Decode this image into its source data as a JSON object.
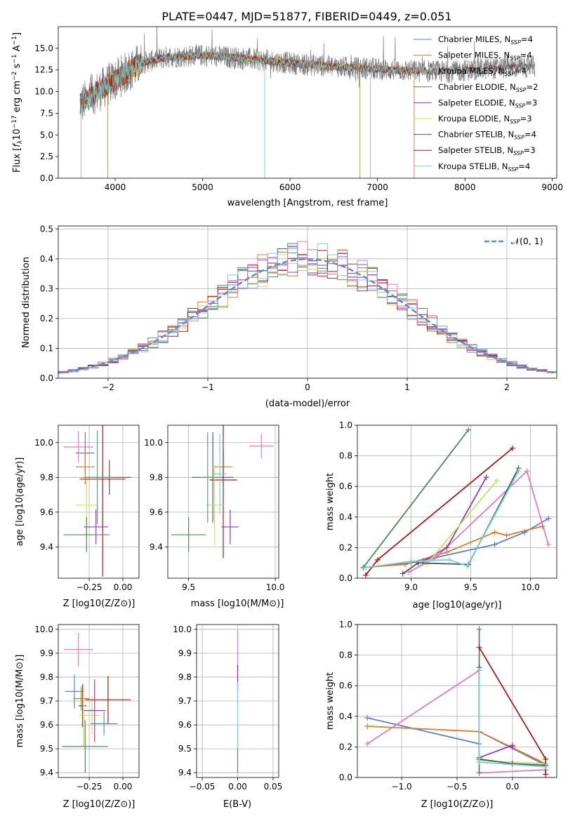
{
  "title": "PLATE=0447, MJD=51877, FIBERID=0449, z=0.051",
  "colors": {
    "Chabrier MILES": "#5b7fd6",
    "Salpeter MILES": "#e07a20",
    "Kroupa MILES": "#c28a1f",
    "Chabrier ELODIE": "#4f8a58",
    "Salpeter ELODIE": "#9a38b8",
    "Kroupa ELODIE": "#e2d43a",
    "Chabrier STELIB": "#555555",
    "Salpeter STELIB": "#b01818",
    "Kroupa STELIB": "#6fd3d8",
    "pink": "#e47ab8",
    "teal": "#5a9e8a",
    "lime": "#c5e65a",
    "normal": "#5b8bd6"
  },
  "chart_data": [
    {
      "id": "spectrum",
      "type": "line",
      "title": "PLATE=0447, MJD=51877, FIBERID=0449, z=0.051",
      "xlabel": "wavelength [Angstrom, rest frame]",
      "ylabel": "Flux [f_λ 10^-17 erg cm^-2 s^-1 A^-1]",
      "xlim": [
        3350,
        9050
      ],
      "ylim": [
        0,
        17.5
      ],
      "xticks": [
        4000,
        5000,
        6000,
        7000,
        8000,
        9000
      ],
      "yticks": [
        0.0,
        2.5,
        5.0,
        7.5,
        10.0,
        12.5,
        15.0
      ],
      "legend_position": "upper right",
      "spectrum_range": [
        3600,
        8800
      ],
      "continuum_points": [
        [
          3600,
          8.5
        ],
        [
          3800,
          10.0
        ],
        [
          3950,
          11.0
        ],
        [
          4100,
          12.0
        ],
        [
          4300,
          13.3
        ],
        [
          4600,
          14.0
        ],
        [
          5000,
          14.2
        ],
        [
          5500,
          13.8
        ],
        [
          6000,
          13.3
        ],
        [
          6500,
          12.9
        ],
        [
          7000,
          12.6
        ],
        [
          7400,
          12.4
        ],
        [
          7800,
          12.3
        ],
        [
          8200,
          12.6
        ],
        [
          8500,
          12.8
        ],
        [
          8800,
          12.9
        ]
      ],
      "series": [
        {
          "name": "Chabrier MILES, N_SSP=4",
          "label_main": "Chabrier MILES, N",
          "label_sub": "SSP",
          "label_tail": "=4",
          "end": 7420
        },
        {
          "name": "Salpeter MILES, N_SSP=4",
          "label_main": "Salpeter MILES, N",
          "label_sub": "SSP",
          "label_tail": "=4",
          "end": 7420
        },
        {
          "name": "Kroupa MILES, N_SSP=4",
          "label_main": "Kroupa MILES, N",
          "label_sub": "SSP",
          "label_tail": "=4",
          "end": 7420
        },
        {
          "name": "Chabrier ELODIE, N_SSP=2",
          "label_main": "Chabrier ELODIE, N",
          "label_sub": "SSP",
          "label_tail": "=2",
          "end": 6800
        },
        {
          "name": "Salpeter ELODIE, N_SSP=3",
          "label_main": "Salpeter ELODIE, N",
          "label_sub": "SSP",
          "label_tail": "=3",
          "end": 6800
        },
        {
          "name": "Kroupa ELODIE, N_SSP=3",
          "label_main": "Kroupa ELODIE, N",
          "label_sub": "SSP",
          "label_tail": "=3",
          "end": 6800
        },
        {
          "name": "Chabrier STELIB, N_SSP=4",
          "label_main": "Chabrier STELIB, N",
          "label_sub": "SSP",
          "label_tail": "=4",
          "end": 8800
        },
        {
          "name": "Salpeter STELIB, N_SSP=3",
          "label_main": "Salpeter STELIB, N",
          "label_sub": "SSP",
          "label_tail": "=3",
          "end": 8800
        },
        {
          "name": "Kroupa STELIB, N_SSP=4",
          "label_main": "Kroupa STELIB, N",
          "label_sub": "SSP",
          "label_tail": "=4",
          "end": 8800
        }
      ]
    },
    {
      "id": "residuals",
      "type": "line",
      "xlabel": "(data-model)/error",
      "ylabel": "Normed distribution",
      "xlim": [
        -2.5,
        2.5
      ],
      "ylim": [
        0,
        0.51
      ],
      "xticks": [
        -2,
        -1,
        0,
        1,
        2
      ],
      "yticks": [
        0.0,
        0.1,
        0.2,
        0.3,
        0.4,
        0.5
      ],
      "grid": true,
      "legend": "𝒩(0, 1)",
      "legend_position": "upper right",
      "bin_width": 0.1,
      "bin_start": -2.5
    },
    {
      "id": "age_vs_Z",
      "type": "scatter",
      "xlabel": "Z [log10(Z/Z⊙)]",
      "ylabel": "age [log10(age/yr)]",
      "xlim": [
        -0.48,
        0.12
      ],
      "ylim": [
        9.22,
        10.1
      ],
      "xticks": [
        -0.25,
        0.0
      ],
      "yticks": [
        9.4,
        9.6,
        9.8,
        10.0
      ],
      "grid": true,
      "points": [
        {
          "c": "pink",
          "x": -0.33,
          "y": 9.975,
          "xe": 0.11,
          "ye": 0.09
        },
        {
          "c": "Chabrier MILES",
          "x": -0.28,
          "y": 9.94,
          "xe": 0.07,
          "ye": 0.12
        },
        {
          "c": "Salpeter MILES",
          "x": -0.28,
          "y": 9.86,
          "xe": 0.07,
          "ye": 0.1
        },
        {
          "c": "lime",
          "x": -0.27,
          "y": 9.64,
          "xe": 0.08,
          "ye": 0.17
        },
        {
          "c": "Chabrier STELIB",
          "x": -0.1,
          "y": 9.8,
          "xe": 0.16,
          "ye": 0.1
        },
        {
          "c": "Salpeter STELIB",
          "x": -0.15,
          "y": 9.79,
          "xe": 0.17,
          "ye": 0.56
        },
        {
          "c": "Salpeter ELODIE",
          "x": -0.2,
          "y": 9.515,
          "xe": 0.09,
          "ye": 0.1
        },
        {
          "c": "teal",
          "x": -0.19,
          "y": 9.8,
          "xe": 0.11,
          "ye": 0.27
        },
        {
          "c": "Chabrier ELODIE",
          "x": -0.27,
          "y": 9.47,
          "xe": 0.17,
          "ye": 0.1
        }
      ]
    },
    {
      "id": "age_vs_mass",
      "type": "scatter",
      "xlabel": "mass [log10(M/M⊙)]",
      "ylabel": "",
      "xlim": [
        9.38,
        10.02
      ],
      "ylim": [
        9.22,
        10.1
      ],
      "xticks": [
        9.5,
        10.0
      ],
      "yticks": [
        9.4,
        9.6,
        9.8,
        10.0
      ],
      "grid": true,
      "points": [
        {
          "c": "pink",
          "x": 9.92,
          "y": 9.98,
          "xe": 0.07,
          "ye": 0.07
        },
        {
          "c": "Salpeter MILES",
          "x": 9.7,
          "y": 9.86,
          "xe": 0.05,
          "ye": 0.1
        },
        {
          "c": "Chabrier STELIB",
          "x": 9.64,
          "y": 9.8,
          "xe": 0.12,
          "ye": 0.26
        },
        {
          "c": "Salpeter STELIB",
          "x": 9.7,
          "y": 9.785,
          "xe": 0.08,
          "ye": 0.45
        },
        {
          "c": "lime",
          "x": 9.65,
          "y": 9.64,
          "xe": 0.05,
          "ye": 0.23
        },
        {
          "c": "Salpeter ELODIE",
          "x": 9.74,
          "y": 9.515,
          "xe": 0.05,
          "ye": 0.1
        },
        {
          "c": "Chabrier ELODIE",
          "x": 9.5,
          "y": 9.47,
          "xe": 0.1,
          "ye": 0.1
        },
        {
          "c": "teal",
          "x": 9.61,
          "y": 9.8,
          "xe": 0.04,
          "ye": 0.26
        },
        {
          "c": "Kroupa STELIB",
          "x": 9.68,
          "y": 9.82,
          "xe": 0.04,
          "ye": 0.23
        }
      ]
    },
    {
      "id": "weight_vs_age",
      "type": "line",
      "xlabel": "age [log10(age/yr)]",
      "ylabel": "mass weight",
      "xlim": [
        8.55,
        10.22
      ],
      "ylim": [
        0.0,
        1.0
      ],
      "xticks": [
        9.0,
        9.5,
        10.0
      ],
      "yticks": [
        0.0,
        0.2,
        0.4,
        0.6,
        0.8,
        1.0
      ],
      "grid": true,
      "series": [
        {
          "c": "Chabrier MILES",
          "pts": [
            [
              8.6,
              0.07
            ],
            [
              9.0,
              0.1
            ],
            [
              9.7,
              0.22
            ],
            [
              9.95,
              0.3
            ],
            [
              10.15,
              0.39
            ]
          ]
        },
        {
          "c": "Salpeter MILES",
          "pts": [
            [
              8.6,
              0.07
            ],
            [
              8.95,
              0.09
            ],
            [
              9.3,
              0.17
            ],
            [
              9.7,
              0.3
            ],
            [
              9.8,
              0.28
            ],
            [
              10.1,
              0.34
            ]
          ]
        },
        {
          "c": "pink",
          "pts": [
            [
              8.98,
              0.04
            ],
            [
              9.2,
              0.13
            ],
            [
              9.97,
              0.7
            ],
            [
              10.15,
              0.22
            ]
          ]
        },
        {
          "c": "Chabrier ELODIE",
          "pts": [
            [
              8.6,
              0.07
            ],
            [
              9.48,
              0.97
            ]
          ]
        },
        {
          "c": "Salpeter ELODIE",
          "pts": [
            [
              9.1,
              0.11
            ],
            [
              9.3,
              0.2
            ],
            [
              9.63,
              0.66
            ]
          ]
        },
        {
          "c": "lime",
          "pts": [
            [
              9.13,
              0.09
            ],
            [
              9.72,
              0.64
            ]
          ]
        },
        {
          "c": "Salpeter STELIB",
          "pts": [
            [
              8.62,
              0.02
            ],
            [
              8.72,
              0.12
            ],
            [
              9.85,
              0.85
            ]
          ]
        },
        {
          "c": "Chabrier STELIB",
          "pts": [
            [
              8.93,
              0.03
            ],
            [
              9.06,
              0.1
            ],
            [
              9.48,
              0.09
            ],
            [
              9.9,
              0.72
            ]
          ]
        },
        {
          "c": "Kroupa STELIB",
          "pts": [
            [
              8.62,
              0.07
            ],
            [
              9.0,
              0.11
            ],
            [
              9.32,
              0.12
            ],
            [
              9.47,
              0.08
            ],
            [
              9.9,
              0.7
            ]
          ]
        }
      ]
    },
    {
      "id": "mass_vs_Z",
      "type": "scatter",
      "xlabel": "Z [log10(Z/Z⊙)]",
      "ylabel": "mass [log10(M/M⊙)]",
      "xlim": [
        -0.48,
        0.12
      ],
      "ylim": [
        9.38,
        10.02
      ],
      "xticks": [
        -0.25,
        0.0
      ],
      "yticks": [
        9.4,
        9.5,
        9.6,
        9.7,
        9.8,
        9.9,
        10.0
      ],
      "grid": true,
      "points": [
        {
          "c": "pink",
          "x": -0.33,
          "y": 9.915,
          "xe": 0.11,
          "ye": 0.07
        },
        {
          "c": "Chabrier MILES",
          "x": -0.36,
          "y": 9.74,
          "xe": 0.07,
          "ye": 0.07
        },
        {
          "c": "Salpeter MILES",
          "x": -0.31,
          "y": 9.71,
          "xe": 0.06,
          "ye": 0.05
        },
        {
          "c": "Chabrier STELIB",
          "x": -0.3,
          "y": 9.68,
          "xe": 0.03,
          "ye": 0.09
        },
        {
          "c": "Kroupa ELODIE",
          "x": -0.29,
          "y": 9.64,
          "xe": 0.03,
          "ye": 0.13
        },
        {
          "c": "lime",
          "x": -0.23,
          "y": 9.64,
          "xe": 0.06,
          "ye": 0.08
        },
        {
          "c": "Salpeter STELIB",
          "x": -0.11,
          "y": 9.705,
          "xe": 0.17,
          "ye": 0.1
        },
        {
          "c": "Salpeter ELODIE",
          "x": -0.21,
          "y": 9.66,
          "xe": 0.08,
          "ye": 0.13
        },
        {
          "c": "teal",
          "x": -0.14,
          "y": 9.605,
          "xe": 0.1,
          "ye": 0.05
        },
        {
          "c": "Chabrier ELODIE",
          "x": -0.28,
          "y": 9.51,
          "xe": 0.17,
          "ye": 0.11
        }
      ]
    },
    {
      "id": "mass_vs_EBV",
      "type": "scatter",
      "xlabel": "E(B-V)",
      "ylabel": "",
      "xlim": [
        -0.058,
        0.058
      ],
      "ylim": [
        9.38,
        10.02
      ],
      "xticks": [
        -0.05,
        0.0,
        0.05
      ],
      "xticklabels": [
        "−0.05",
        "0.00",
        "0.05"
      ],
      "yticks": [
        9.4,
        9.5,
        9.6,
        9.7,
        9.8,
        9.9,
        10.0
      ],
      "grid": true,
      "points": [
        {
          "c": "pink",
          "x": 0.0,
          "y": 9.915,
          "xe": 0.0,
          "ye": 0.08
        },
        {
          "c": "Salpeter STELIB",
          "x": 0.0,
          "y": 9.79,
          "xe": 0.0,
          "ye": 0.06
        },
        {
          "c": "Salpeter ELODIE",
          "x": 0.0,
          "y": 9.8,
          "xe": 0.0,
          "ye": 0.04
        },
        {
          "c": "Chabrier ELODIE",
          "x": 0.0,
          "y": 9.5,
          "xe": 0.0,
          "ye": 0.1
        },
        {
          "c": "Kroupa STELIB",
          "x": 0.0,
          "y": 9.64,
          "xe": 0.0,
          "ye": 0.14
        }
      ]
    },
    {
      "id": "weight_vs_Z",
      "type": "line",
      "xlabel": "Z [log10(Z/Z⊙)]",
      "ylabel": "mass weight",
      "xlim": [
        -1.4,
        0.4
      ],
      "ylim": [
        0.0,
        1.0
      ],
      "xticks": [
        -1.0,
        -0.5,
        0.0
      ],
      "yticks": [
        0.0,
        0.2,
        0.4,
        0.6,
        0.8,
        1.0
      ],
      "grid": true,
      "series": [
        {
          "c": "Chabrier MILES",
          "pts": [
            [
              -1.31,
              0.39
            ],
            [
              -0.3,
              0.22
            ],
            [
              -0.3,
              0.3
            ],
            [
              0.3,
              0.08
            ]
          ]
        },
        {
          "c": "Salpeter MILES",
          "pts": [
            [
              -1.31,
              0.335
            ],
            [
              -0.3,
              0.3
            ],
            [
              0.3,
              0.09
            ]
          ]
        },
        {
          "c": "pink",
          "pts": [
            [
              -1.31,
              0.22
            ],
            [
              -0.3,
              0.7
            ],
            [
              -0.3,
              0.03
            ],
            [
              0.3,
              0.05
            ]
          ]
        },
        {
          "c": "Chabrier ELODIE",
          "pts": [
            [
              -0.3,
              0.97
            ],
            [
              -0.3,
              0.03
            ]
          ]
        },
        {
          "c": "Salpeter ELODIE",
          "pts": [
            [
              -0.3,
              0.13
            ],
            [
              0.0,
              0.21
            ],
            [
              0.0,
              0.2
            ]
          ]
        },
        {
          "c": "lime",
          "pts": [
            [
              -0.3,
              0.11
            ],
            [
              0.3,
              0.09
            ]
          ]
        },
        {
          "c": "Salpeter STELIB",
          "pts": [
            [
              -0.3,
              0.85
            ],
            [
              0.3,
              0.12
            ],
            [
              0.3,
              0.02
            ]
          ]
        },
        {
          "c": "Chabrier STELIB",
          "pts": [
            [
              -0.3,
              0.72
            ],
            [
              -0.3,
              0.12
            ],
            [
              0.0,
              0.09
            ],
            [
              0.3,
              0.08
            ]
          ]
        },
        {
          "c": "Kroupa STELIB",
          "pts": [
            [
              -0.3,
              0.7
            ],
            [
              -0.3,
              0.1
            ],
            [
              0.3,
              0.07
            ]
          ]
        }
      ]
    }
  ]
}
